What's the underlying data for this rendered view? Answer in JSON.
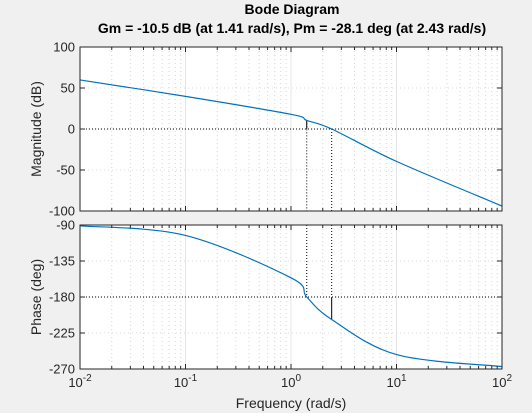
{
  "chart_data": {
    "type": "line",
    "title": "Bode Diagram",
    "subtitle": "Gm = -10.5 dB (at 1.41 rad/s),  Pm = -28.1 deg (at 2.43 rad/s)",
    "xlabel": "Frequency  (rad/s)",
    "xscale": "log",
    "xlim": [
      0.01,
      100
    ],
    "x_tick_labels": [
      {
        "base": "10",
        "exp": "-2"
      },
      {
        "base": "10",
        "exp": "-1"
      },
      {
        "base": "10",
        "exp": "0"
      },
      {
        "base": "10",
        "exp": "1"
      },
      {
        "base": "10",
        "exp": "2"
      }
    ],
    "grid": true,
    "color": "#0072bd",
    "gain_crossover_frequency": 2.43,
    "phase_crossover_frequency": 1.41,
    "panels": [
      {
        "name": "magnitude",
        "ylabel": "Magnitude (dB)",
        "ylim": [
          -100,
          100
        ],
        "yticks": [
          "100",
          "50",
          "0",
          "-50",
          "-100"
        ],
        "reference_line": 0,
        "x": [
          0.01,
          0.1,
          1,
          1.41,
          2.43,
          10,
          100
        ],
        "y": [
          59.8,
          39.8,
          17.9,
          10.5,
          0,
          -39.5,
          -94
        ]
      },
      {
        "name": "phase",
        "ylabel": "Phase (deg)",
        "ylim": [
          -270,
          -90
        ],
        "yticks": [
          "-90",
          "-135",
          "-180",
          "-225",
          "-270"
        ],
        "reference_line": -180,
        "x": [
          0.01,
          0.1,
          1,
          1.41,
          2.43,
          10,
          100
        ],
        "y": [
          -91,
          -103,
          -156,
          -180,
          -208.1,
          -252,
          -267
        ]
      }
    ]
  }
}
